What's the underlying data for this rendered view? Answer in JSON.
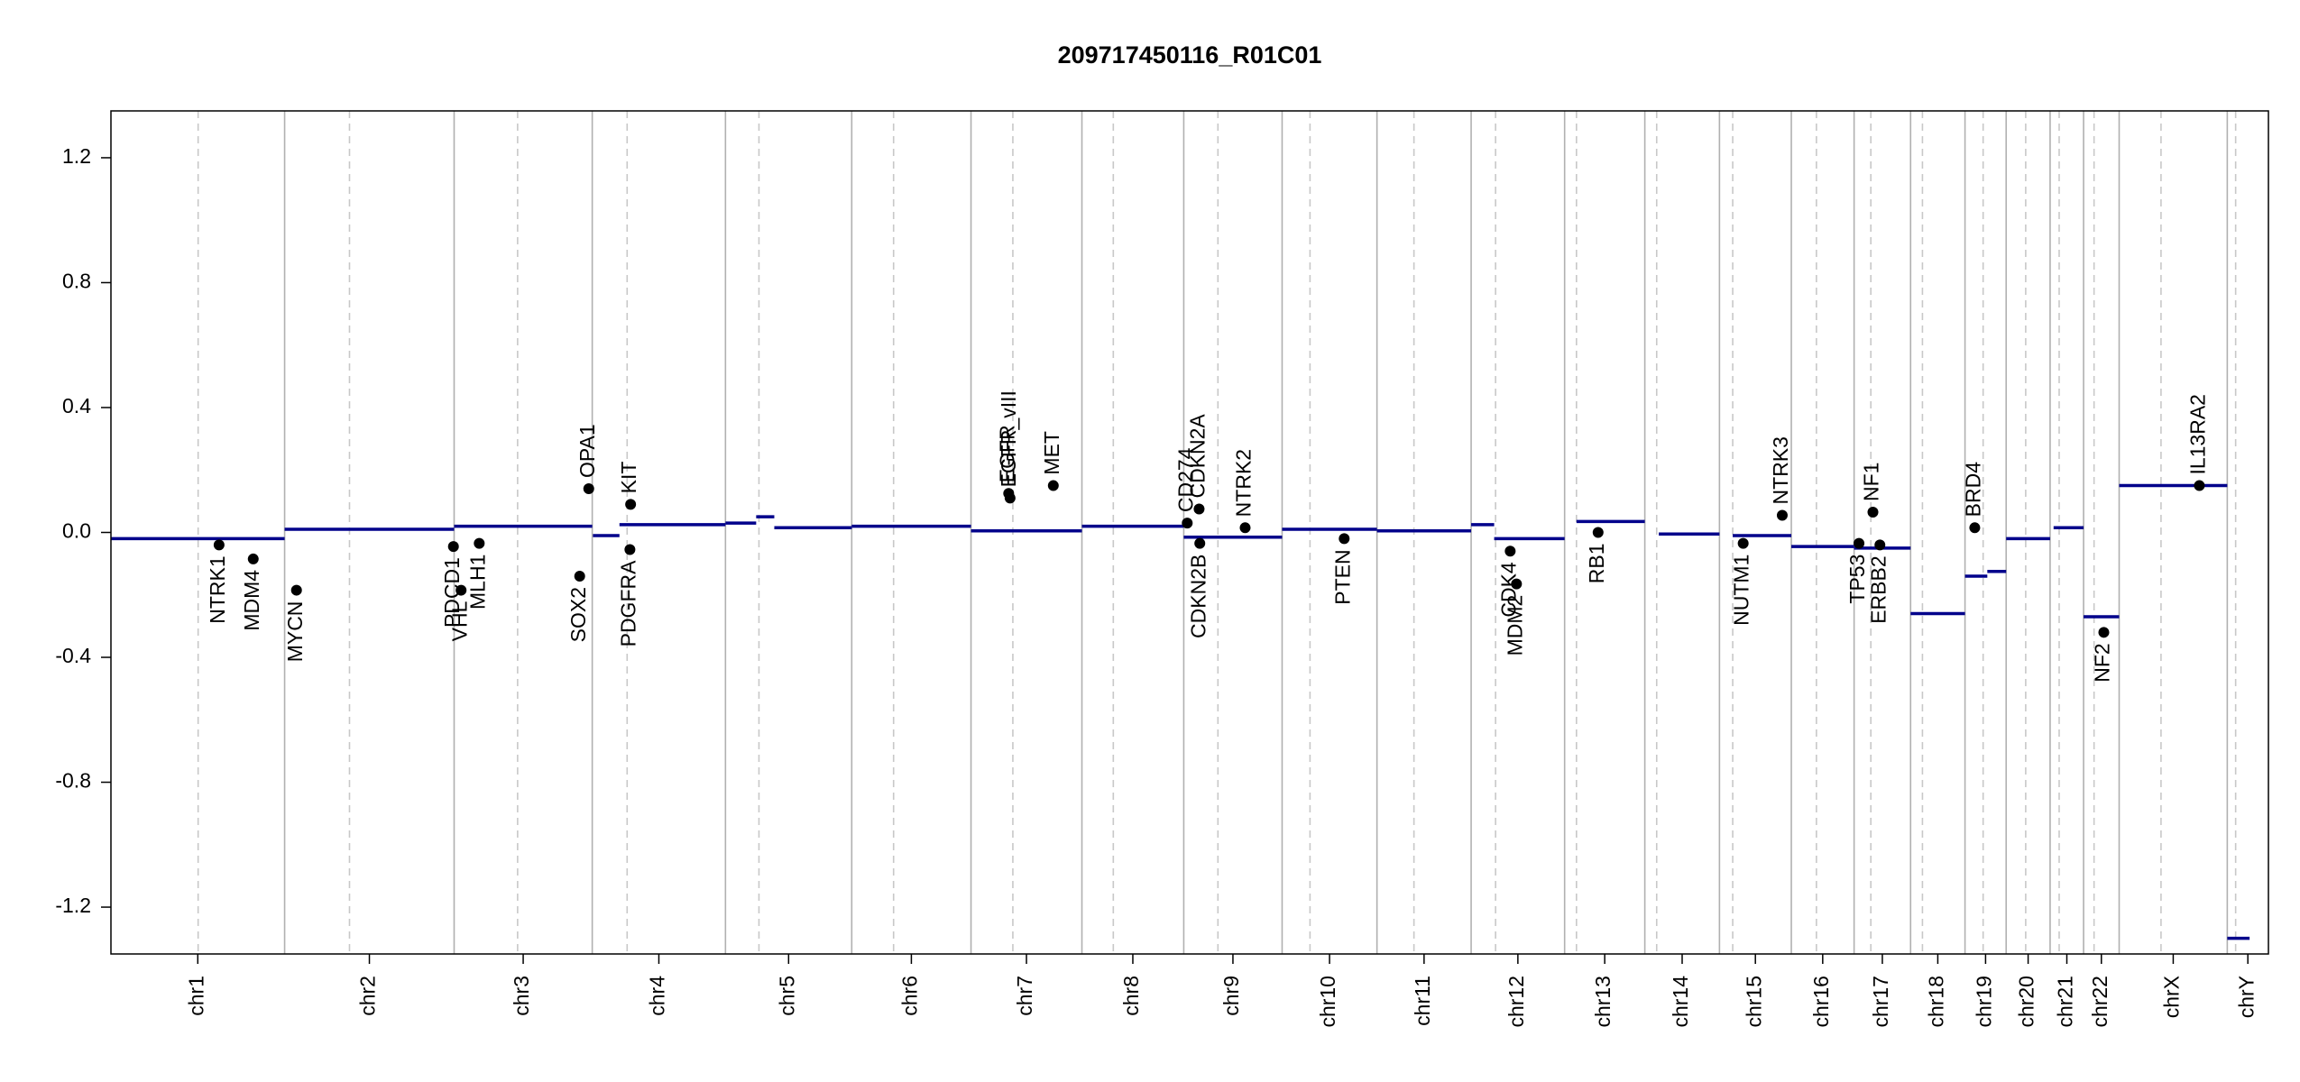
{
  "chart_data": {
    "type": "copy-number",
    "title": "209717450116_R01C01",
    "xlim": [
      0,
      3093
    ],
    "ylim": [
      -1.35,
      1.35
    ],
    "yticks": [
      -1.2,
      -0.8,
      -0.4,
      {
        "value": 0,
        "label": "0.0"
      },
      0.4,
      0.8,
      1.2
    ],
    "segment_color": "#00008b",
    "gene_color": "#000000",
    "chromosomes": [
      {
        "name": "chr1",
        "start": 0,
        "end": 249,
        "centromere": 125
      },
      {
        "name": "chr2",
        "start": 249,
        "end": 492,
        "centromere": 342
      },
      {
        "name": "chr3",
        "start": 492,
        "end": 690,
        "centromere": 583
      },
      {
        "name": "chr4",
        "start": 690,
        "end": 881,
        "centromere": 740
      },
      {
        "name": "chr5",
        "start": 881,
        "end": 1062,
        "centromere": 929
      },
      {
        "name": "chr6",
        "start": 1062,
        "end": 1233,
        "centromere": 1122
      },
      {
        "name": "chr7",
        "start": 1233,
        "end": 1392,
        "centromere": 1293
      },
      {
        "name": "chr8",
        "start": 1392,
        "end": 1538,
        "centromere": 1437
      },
      {
        "name": "chr9",
        "start": 1538,
        "end": 1679,
        "centromere": 1587
      },
      {
        "name": "chr10",
        "start": 1679,
        "end": 1815,
        "centromere": 1719
      },
      {
        "name": "chr11",
        "start": 1815,
        "end": 1950,
        "centromere": 1868
      },
      {
        "name": "chr12",
        "start": 1950,
        "end": 2084,
        "centromere": 1985
      },
      {
        "name": "chr13",
        "start": 2084,
        "end": 2199,
        "centromere": 2101
      },
      {
        "name": "chr14",
        "start": 2199,
        "end": 2306,
        "centromere": 2216
      },
      {
        "name": "chr15",
        "start": 2306,
        "end": 2409,
        "centromere": 2325
      },
      {
        "name": "chr16",
        "start": 2409,
        "end": 2499,
        "centromere": 2445
      },
      {
        "name": "chr17",
        "start": 2499,
        "end": 2580,
        "centromere": 2523
      },
      {
        "name": "chr18",
        "start": 2580,
        "end": 2658,
        "centromere": 2597
      },
      {
        "name": "chr19",
        "start": 2658,
        "end": 2717,
        "centromere": 2684
      },
      {
        "name": "chr20",
        "start": 2717,
        "end": 2780,
        "centromere": 2745
      },
      {
        "name": "chr21",
        "start": 2780,
        "end": 2828,
        "centromere": 2793
      },
      {
        "name": "chr22",
        "start": 2828,
        "end": 2879,
        "centromere": 2843
      },
      {
        "name": "chrX",
        "start": 2879,
        "end": 3034,
        "centromere": 2939
      },
      {
        "name": "chrY",
        "start": 3034,
        "end": 3093,
        "centromere": 3046
      }
    ],
    "segments": [
      {
        "start": 0,
        "end": 249,
        "value": -0.02
      },
      {
        "start": 249,
        "end": 492,
        "value": 0.01
      },
      {
        "start": 492,
        "end": 690,
        "value": 0.02
      },
      {
        "start": 691,
        "end": 729,
        "value": -0.01
      },
      {
        "start": 729,
        "end": 881,
        "value": 0.025
      },
      {
        "start": 881,
        "end": 925,
        "value": 0.03
      },
      {
        "start": 925,
        "end": 951,
        "value": 0.05
      },
      {
        "start": 951,
        "end": 1062,
        "value": 0.015
      },
      {
        "start": 1062,
        "end": 1233,
        "value": 0.02
      },
      {
        "start": 1233,
        "end": 1392,
        "value": 0.005
      },
      {
        "start": 1392,
        "end": 1538,
        "value": 0.02
      },
      {
        "start": 1538,
        "end": 1679,
        "value": -0.015
      },
      {
        "start": 1679,
        "end": 1815,
        "value": 0.01
      },
      {
        "start": 1815,
        "end": 1950,
        "value": 0.005
      },
      {
        "start": 1950,
        "end": 1983,
        "value": 0.025
      },
      {
        "start": 1983,
        "end": 2084,
        "value": -0.02
      },
      {
        "start": 2101,
        "end": 2199,
        "value": 0.035
      },
      {
        "start": 2219,
        "end": 2306,
        "value": -0.005
      },
      {
        "start": 2325,
        "end": 2409,
        "value": -0.01
      },
      {
        "start": 2409,
        "end": 2499,
        "value": -0.045
      },
      {
        "start": 2499,
        "end": 2580,
        "value": -0.05
      },
      {
        "start": 2580,
        "end": 2658,
        "value": -0.26
      },
      {
        "start": 2658,
        "end": 2690,
        "value": -0.14
      },
      {
        "start": 2690,
        "end": 2717,
        "value": -0.125
      },
      {
        "start": 2717,
        "end": 2780,
        "value": -0.02
      },
      {
        "start": 2785,
        "end": 2828,
        "value": 0.015
      },
      {
        "start": 2828,
        "end": 2879,
        "value": -0.27
      },
      {
        "start": 2879,
        "end": 3034,
        "value": 0.15
      },
      {
        "start": 3034,
        "end": 3066,
        "value": -1.3
      }
    ],
    "genes": [
      {
        "name": "NTRK1",
        "x": 155,
        "value": -0.04
      },
      {
        "name": "MDM4",
        "x": 204,
        "value": -0.085
      },
      {
        "name": "MYCN",
        "x": 266,
        "value": -0.185
      },
      {
        "name": "PDCD1",
        "x": 491,
        "value": -0.045
      },
      {
        "name": "VHL",
        "x": 502,
        "value": -0.185
      },
      {
        "name": "MLH1",
        "x": 528,
        "value": -0.035
      },
      {
        "name": "SOX2",
        "x": 672,
        "value": -0.14
      },
      {
        "name": "OPA1",
        "x": 685,
        "value": 0.14
      },
      {
        "name": "KIT",
        "x": 745,
        "value": 0.09
      },
      {
        "name": "PDGFRA",
        "x": 744,
        "value": -0.055
      },
      {
        "name": "EGFR",
        "x": 1287,
        "value": 0.125
      },
      {
        "name": "EGFR_vIII",
        "x": 1289,
        "value": 0.11
      },
      {
        "name": "MET",
        "x": 1351,
        "value": 0.15
      },
      {
        "name": "CD274",
        "x": 1543,
        "value": 0.03
      },
      {
        "name": "CDKN2A",
        "x": 1560,
        "value": 0.075
      },
      {
        "name": "CDKN2B",
        "x": 1561,
        "value": -0.035
      },
      {
        "name": "NTRK2",
        "x": 1626,
        "value": 0.015
      },
      {
        "name": "PTEN",
        "x": 1768,
        "value": -0.02
      },
      {
        "name": "CDK4",
        "x": 2006,
        "value": -0.06
      },
      {
        "name": "MDM2",
        "x": 2015,
        "value": -0.165
      },
      {
        "name": "RB1",
        "x": 2132,
        "value": 0
      },
      {
        "name": "NUTM1",
        "x": 2340,
        "value": -0.035
      },
      {
        "name": "NTRK3",
        "x": 2396,
        "value": 0.055
      },
      {
        "name": "TP53",
        "x": 2506,
        "value": -0.035
      },
      {
        "name": "NF1",
        "x": 2526,
        "value": 0.065
      },
      {
        "name": "ERBB2",
        "x": 2536,
        "value": -0.04
      },
      {
        "name": "BRD4",
        "x": 2672,
        "value": 0.015
      },
      {
        "name": "NF2",
        "x": 2857,
        "value": -0.32
      },
      {
        "name": "IL13RA2",
        "x": 2994,
        "value": 0.15
      }
    ]
  }
}
